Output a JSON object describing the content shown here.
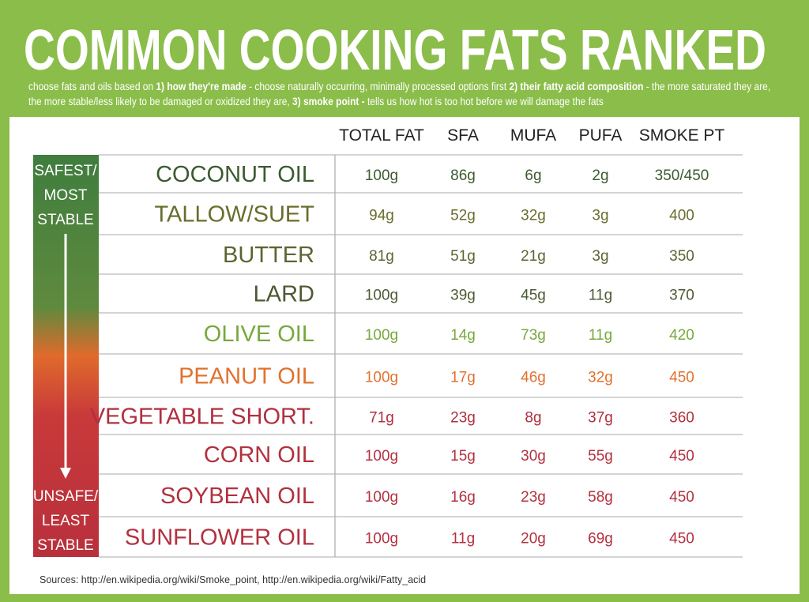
{
  "header": {
    "title": "COMMON COOKING FATS RANKED",
    "subtitle": [
      {
        "text": "choose fats and oils based on "
      },
      {
        "text": "1) how they're made",
        "bold": true
      },
      {
        "text": " - choose naturally occurring, minimally processed options first "
      },
      {
        "text": "2) their fatty acid composition",
        "bold": true
      },
      {
        "text": " - the more saturated they are, the more stable/less likely to be damaged or oxidized they are, "
      },
      {
        "text": "3) smoke point -",
        "bold": true
      },
      {
        "text": " tells us how hot is too hot before we will damage the fats"
      }
    ]
  },
  "scale": {
    "top": [
      "SAFEST/",
      "MOST",
      "STABLE"
    ],
    "bottom": [
      "UNSAFE/",
      "LEAST",
      "STABLE"
    ]
  },
  "table": {
    "columns": [
      "TOTAL FAT",
      "SFA",
      "MUFA",
      "PUFA",
      "SMOKE PT"
    ],
    "rows": [
      {
        "name": "COCONUT OIL",
        "color": "#3c5a30",
        "values": [
          "100g",
          "86g",
          "6g",
          "2g",
          "350/450"
        ]
      },
      {
        "name": "TALLOW/SUET",
        "color": "#6a6d2c",
        "values": [
          "94g",
          "52g",
          "32g",
          "3g",
          "400"
        ]
      },
      {
        "name": "BUTTER",
        "color": "#5b6530",
        "values": [
          "81g",
          "51g",
          "21g",
          "3g",
          "350"
        ]
      },
      {
        "name": "LARD",
        "color": "#4b5a33",
        "values": [
          "100g",
          "39g",
          "45g",
          "11g",
          "370"
        ]
      },
      {
        "name": "OLIVE OIL",
        "color": "#78a83c",
        "values": [
          "100g",
          "14g",
          "73g",
          "11g",
          "420"
        ]
      },
      {
        "name": "PEANUT OIL",
        "color": "#e0722e",
        "values": [
          "100g",
          "17g",
          "46g",
          "32g",
          "450"
        ]
      },
      {
        "name": "VEGETABLE SHORT.",
        "color": "#b02f3e",
        "values": [
          "71g",
          "23g",
          "8g",
          "37g",
          "360"
        ]
      },
      {
        "name": "CORN OIL",
        "color": "#b3313f",
        "values": [
          "100g",
          "15g",
          "30g",
          "55g",
          "450"
        ]
      },
      {
        "name": "SOYBEAN OIL",
        "color": "#b3313f",
        "values": [
          "100g",
          "16g",
          "23g",
          "58g",
          "450"
        ]
      },
      {
        "name": "SUNFLOWER OIL",
        "color": "#b3313f",
        "values": [
          "100g",
          "11g",
          "20g",
          "69g",
          "450"
        ]
      }
    ]
  },
  "footer": {
    "sources": "Sources: http://en.wikipedia.org/wiki/Smoke_point, http://en.wikipedia.org/wiki/Fatty_acid"
  }
}
